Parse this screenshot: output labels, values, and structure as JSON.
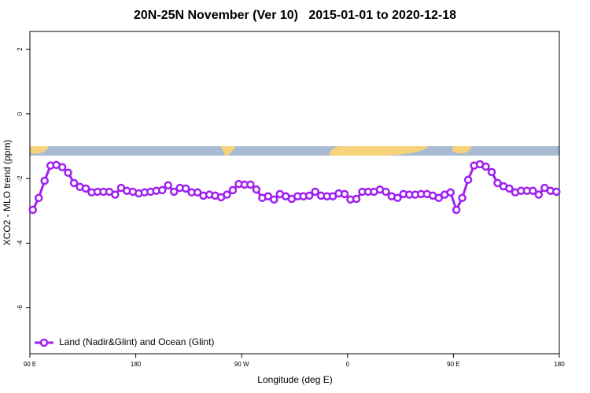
{
  "chart_data": {
    "type": "line",
    "title": "20N-25N November (Ver 10)   2015-01-01 to 2020-12-18",
    "x_label": "Longitude (deg E)",
    "y_label": "XCO2 - MLO trend (ppm)",
    "xlim": [
      90,
      540
    ],
    "ylim": [
      -7.42,
      2.55
    ],
    "xticks": [
      {
        "value": 90,
        "label": "90 E"
      },
      180,
      {
        "value": 270,
        "label": "90 W"
      },
      {
        "value": 360,
        "label": "0"
      },
      {
        "value": 450,
        "label": "90 E"
      },
      {
        "value": 540,
        "label": "180"
      }
    ],
    "yticks": [
      2,
      0,
      -2,
      -4,
      -6
    ],
    "grid": false,
    "legend": "bottom-left",
    "x": [
      92.5,
      97.5,
      102.5,
      107.5,
      112.5,
      117.5,
      122.5,
      127.5,
      132.5,
      137.5,
      142.5,
      147.5,
      152.5,
      157.5,
      162.5,
      167.5,
      172.5,
      177.5,
      182.5,
      187.5,
      192.5,
      197.5,
      202.5,
      207.5,
      212.5,
      217.5,
      222.5,
      227.5,
      232.5,
      237.5,
      242.5,
      247.5,
      252.5,
      257.5,
      262.5,
      267.5,
      272.5,
      277.5,
      282.5,
      287.5,
      292.5,
      297.5,
      302.5,
      307.5,
      312.5,
      317.5,
      322.5,
      327.5,
      332.5,
      337.5,
      342.5,
      347.5,
      352.5,
      357.5,
      362.5,
      367.5,
      372.5,
      377.5,
      382.5,
      387.5,
      392.5,
      397.5,
      402.5,
      407.5,
      412.5,
      417.5,
      422.5,
      427.5,
      432.5,
      437.5,
      442.5,
      447.5,
      452.5,
      457.5,
      462.5,
      467.5,
      472.5,
      477.5,
      482.5,
      487.5,
      492.5,
      497.5,
      502.5,
      507.5,
      512.5,
      517.5,
      522.5,
      527.5,
      532.5,
      537.5
    ],
    "series": [
      {
        "name": "Land (Nadir&Glint) and Ocean (Glint)",
        "color": "#a020f0",
        "values": [
          -2.97,
          -2.6,
          -2.07,
          -1.6,
          -1.58,
          -1.65,
          -1.82,
          -2.14,
          -2.26,
          -2.31,
          -2.43,
          -2.41,
          -2.41,
          -2.41,
          -2.5,
          -2.29,
          -2.38,
          -2.41,
          -2.46,
          -2.43,
          -2.41,
          -2.38,
          -2.36,
          -2.21,
          -2.41,
          -2.29,
          -2.31,
          -2.43,
          -2.43,
          -2.53,
          -2.5,
          -2.53,
          -2.58,
          -2.5,
          -2.36,
          -2.17,
          -2.19,
          -2.19,
          -2.34,
          -2.6,
          -2.55,
          -2.65,
          -2.48,
          -2.55,
          -2.63,
          -2.55,
          -2.55,
          -2.53,
          -2.41,
          -2.53,
          -2.55,
          -2.55,
          -2.46,
          -2.48,
          -2.65,
          -2.63,
          -2.41,
          -2.41,
          -2.41,
          -2.34,
          -2.41,
          -2.55,
          -2.6,
          -2.48,
          -2.5,
          -2.5,
          -2.48,
          -2.48,
          -2.53,
          -2.6,
          -2.5,
          -2.43,
          -2.97,
          -2.6,
          -2.04,
          -1.6,
          -1.56,
          -1.63,
          -1.8,
          -2.14,
          -2.24,
          -2.31,
          -2.43,
          -2.38,
          -2.38,
          -2.38,
          -2.5,
          -2.29,
          -2.38,
          -2.41
        ]
      }
    ]
  }
}
